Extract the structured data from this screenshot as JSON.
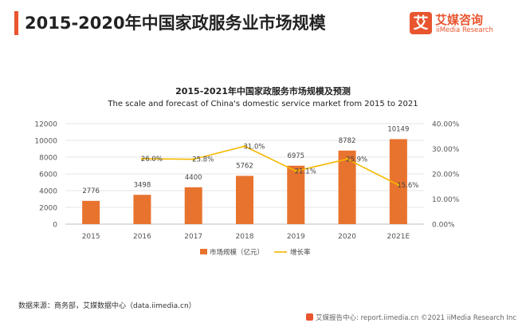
{
  "page": {
    "title": "2015-2020年中国家政服务业市场规模"
  },
  "brand": {
    "logo_char": "艾",
    "name": "艾媒咨询",
    "sub": "iiMedia Research"
  },
  "chart_data": {
    "type": "bar",
    "title": "2015-2021年中国家政服务市场规模及预测",
    "subtitle": "The scale and forecast of China's domestic service market from 2015 to 2021",
    "categories": [
      "2015",
      "2016",
      "2017",
      "2018",
      "2019",
      "2020",
      "2021E"
    ],
    "series": [
      {
        "name": "市场规模（亿元）",
        "kind": "bar",
        "axis": "left",
        "values": [
          2776,
          3498,
          4400,
          5762,
          6975,
          8782,
          10149
        ],
        "labels": [
          "2776",
          "3498",
          "4400",
          "5762",
          "6975",
          "8782",
          "10149"
        ],
        "color": "#e8732e"
      },
      {
        "name": "增长率",
        "kind": "line",
        "axis": "right",
        "values": [
          null,
          26.0,
          25.8,
          31.0,
          21.1,
          25.9,
          15.6
        ],
        "labels": [
          null,
          "26.0%",
          "25.8%",
          "31.0%",
          "21.1%",
          "25.9%",
          "15.6%"
        ],
        "color": "#f5b800"
      }
    ],
    "ylim_left": [
      0,
      12000
    ],
    "yticks_left": [
      "0",
      "2000",
      "4000",
      "6000",
      "8000",
      "10000",
      "12000"
    ],
    "ylim_right": [
      0,
      40
    ],
    "yticks_right": [
      "0.00%",
      "10.00%",
      "20.00%",
      "30.00%",
      "40.00%"
    ],
    "legend_position": "bottom-center"
  },
  "source": "数据来源：商务部，艾媒数据中心（data.iimedia.cn）",
  "footer": "艾媒报告中心: report.iimedia.cn  ©2021  iiMedia Research  Inc"
}
